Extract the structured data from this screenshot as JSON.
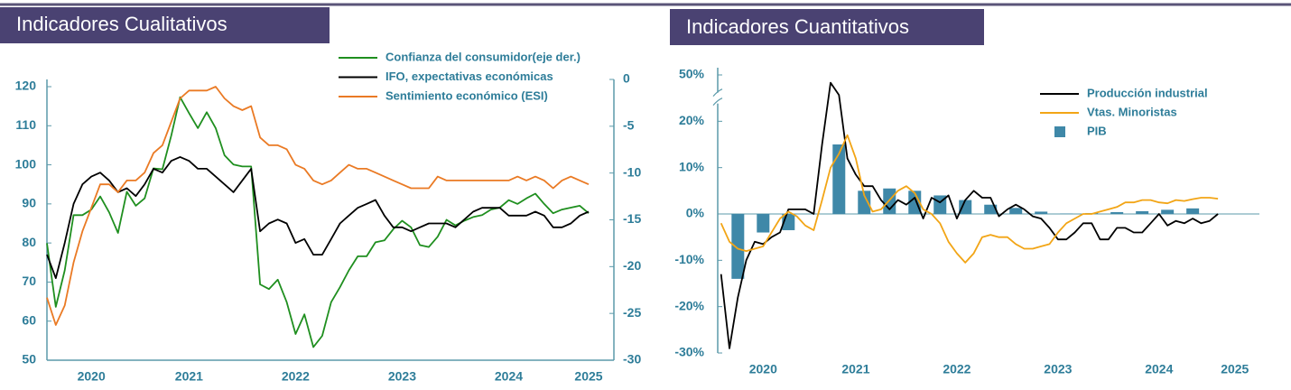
{
  "chart_data": [
    {
      "type": "line",
      "title": "Indicadores Cualitativos",
      "categories": [
        null,
        null,
        null,
        null,
        null,
        "2020",
        null,
        null,
        null,
        null,
        null,
        null,
        null,
        null,
        null,
        null,
        "2021",
        null,
        null,
        null,
        null,
        null,
        null,
        null,
        null,
        null,
        null,
        null,
        "2022",
        null,
        null,
        null,
        null,
        null,
        null,
        null,
        null,
        null,
        null,
        null,
        "2023",
        null,
        null,
        null,
        null,
        null,
        null,
        null,
        null,
        null,
        null,
        null,
        "2024",
        null,
        null,
        null,
        null,
        null,
        null,
        null,
        null,
        "2025"
      ],
      "series": [
        {
          "name": "Confianza del consumidor(eje der.)",
          "color": "#1f8f1f",
          "axis": "y2",
          "values": [
            -17.5,
            -24.3,
            -20.4,
            -14.5,
            -14.5,
            -13.9,
            -12.5,
            -14.2,
            -16.4,
            -12.0,
            -13.5,
            -12.7,
            -9.5,
            -9.6,
            -6.0,
            -1.9,
            -3.6,
            -5.2,
            -3.5,
            -5.2,
            -8.1,
            -9.1,
            -9.3,
            -9.3,
            -21.9,
            -22.4,
            -21.4,
            -23.8,
            -27.2,
            -25.1,
            -28.6,
            -27.4,
            -23.8,
            -22.2,
            -20.4,
            -18.9,
            -18.9,
            -17.4,
            -17.2,
            -16.0,
            -15.1,
            -15.8,
            -17.7,
            -17.9,
            -16.8,
            -15.0,
            -15.6,
            -15.1,
            -14.7,
            -14.5,
            -13.9,
            -13.7,
            -12.9,
            -13.3,
            -12.7,
            -12.2,
            -13.3,
            -14.3,
            -13.9,
            -13.7,
            -13.5,
            -14.3
          ]
        },
        {
          "name": "IFO, expectativas económicas",
          "color": "#000000",
          "values": [
            77,
            71,
            80,
            90,
            95,
            97,
            98,
            96,
            93,
            94,
            92,
            95,
            99,
            98,
            101,
            102,
            101,
            99,
            99,
            97,
            95,
            93,
            96,
            99,
            83,
            85,
            86,
            85,
            80,
            81,
            77,
            77,
            81,
            85,
            87,
            89,
            90,
            91,
            87,
            84,
            84,
            83,
            84,
            85,
            85,
            85,
            84,
            86,
            88,
            89,
            89,
            89,
            87,
            87,
            87,
            88,
            87,
            84,
            84,
            85,
            87,
            88
          ]
        },
        {
          "name": "Sentimiento económico (ESI)",
          "color": "#ea7a24",
          "values": [
            66,
            59,
            64,
            75,
            83,
            89,
            95,
            95,
            93,
            96,
            96,
            98,
            103,
            105,
            111,
            117,
            119,
            119,
            119,
            120,
            117,
            115,
            114,
            115,
            107,
            105,
            105,
            104,
            100,
            99,
            96,
            95,
            96,
            98,
            100,
            99,
            99,
            98,
            97,
            96,
            95,
            94,
            94,
            94,
            97,
            96,
            96,
            96,
            96,
            96,
            96,
            96,
            96,
            97,
            96,
            97,
            96,
            94,
            96,
            97,
            96,
            95
          ]
        }
      ],
      "ylim": [
        50,
        120
      ],
      "yticks": [
        50,
        60,
        70,
        80,
        90,
        100,
        110,
        120
      ],
      "y2lim": [
        -30,
        0
      ],
      "y2ticks": [
        -30,
        -25,
        -20,
        -15,
        -10,
        -5,
        0
      ],
      "legend": "top-right"
    },
    {
      "type": "line",
      "title": "Indicadores Cuantitativos",
      "categories": [
        null,
        null,
        null,
        null,
        null,
        null,
        null,
        "2020",
        null,
        null,
        null,
        null,
        null,
        null,
        null,
        null,
        null,
        null,
        "2021",
        null,
        null,
        null,
        null,
        null,
        null,
        null,
        null,
        null,
        null,
        null,
        "2022",
        null,
        null,
        null,
        null,
        null,
        null,
        null,
        null,
        null,
        null,
        null,
        "2023",
        null,
        null,
        null,
        null,
        null,
        null,
        null,
        null,
        null,
        null,
        null,
        "2024",
        null,
        null,
        null,
        null,
        null,
        null,
        null,
        null,
        "2025"
      ],
      "series": [
        {
          "name": "Producción industrial",
          "color": "#000000",
          "values": [
            null,
            null,
            -13,
            -29,
            -18,
            -10,
            -6,
            -6.5,
            -5,
            -4,
            1,
            1,
            1,
            0,
            15,
            45,
            37,
            12,
            8.5,
            6,
            6,
            3,
            1,
            3,
            2,
            3.5,
            -1,
            3.5,
            2.5,
            4,
            -1,
            3,
            5,
            3.5,
            3.5,
            -0.5,
            1,
            2,
            1,
            -0.5,
            -1,
            -3,
            -5.5,
            -5.5,
            -4,
            -2,
            -2,
            -5.5,
            -5.5,
            -3,
            -3,
            -4,
            -4,
            -2,
            0,
            -2.5,
            -1.5,
            -2,
            -1,
            -2,
            -1.5,
            0,
            null,
            null
          ]
        },
        {
          "name": "Vtas. Minoristas",
          "color": "#f2a516",
          "values": [
            null,
            null,
            -2,
            -6,
            -7.5,
            -8,
            -7.5,
            -7,
            -4,
            -1,
            0.5,
            -0.5,
            -2.5,
            -3.5,
            3,
            10,
            13,
            17,
            12,
            4,
            0.5,
            1,
            3,
            5,
            6,
            4.5,
            1,
            0,
            -2,
            -6,
            -8.5,
            -10.5,
            -8.5,
            -5,
            -4.5,
            -5,
            -5,
            -6.5,
            -7.5,
            -7.5,
            -7,
            -6.5,
            -4,
            -2,
            -1,
            0,
            0,
            0.5,
            1,
            1.5,
            2.5,
            2.5,
            3,
            3,
            2.5,
            2.3,
            3,
            2.8,
            3.2,
            3.5,
            3.5,
            3.3,
            null,
            null
          ]
        },
        {
          "name": "PIB",
          "color": "#3f88a8",
          "type": "bar",
          "values": [
            null,
            null,
            null,
            null,
            -14,
            null,
            null,
            -4,
            null,
            null,
            -3.5,
            null,
            null,
            null,
            null,
            null,
            15,
            null,
            null,
            5,
            null,
            null,
            5.5,
            null,
            null,
            5,
            null,
            null,
            4,
            null,
            null,
            3,
            null,
            null,
            2,
            null,
            null,
            1.3,
            null,
            null,
            0.5,
            null,
            null,
            0.1,
            null,
            null,
            0.2,
            null,
            null,
            0.4,
            null,
            null,
            0.6,
            null,
            null,
            0.9,
            null,
            null,
            1.2,
            null,
            null,
            null,
            null,
            null
          ]
        }
      ],
      "ylim": [
        -30,
        50
      ],
      "yticks": [
        {
          "value": -30,
          "label": "-30%"
        },
        {
          "value": -20,
          "label": "-20%"
        },
        {
          "value": -10,
          "label": "-10%"
        },
        {
          "value": 0,
          "label": "0%"
        },
        {
          "value": 10,
          "label": "10%"
        },
        {
          "value": 20,
          "label": "20%"
        },
        {
          "value": 50,
          "label": "50%"
        }
      ],
      "y_axis_break": true,
      "zero_line": true,
      "legend": "top-right"
    }
  ]
}
